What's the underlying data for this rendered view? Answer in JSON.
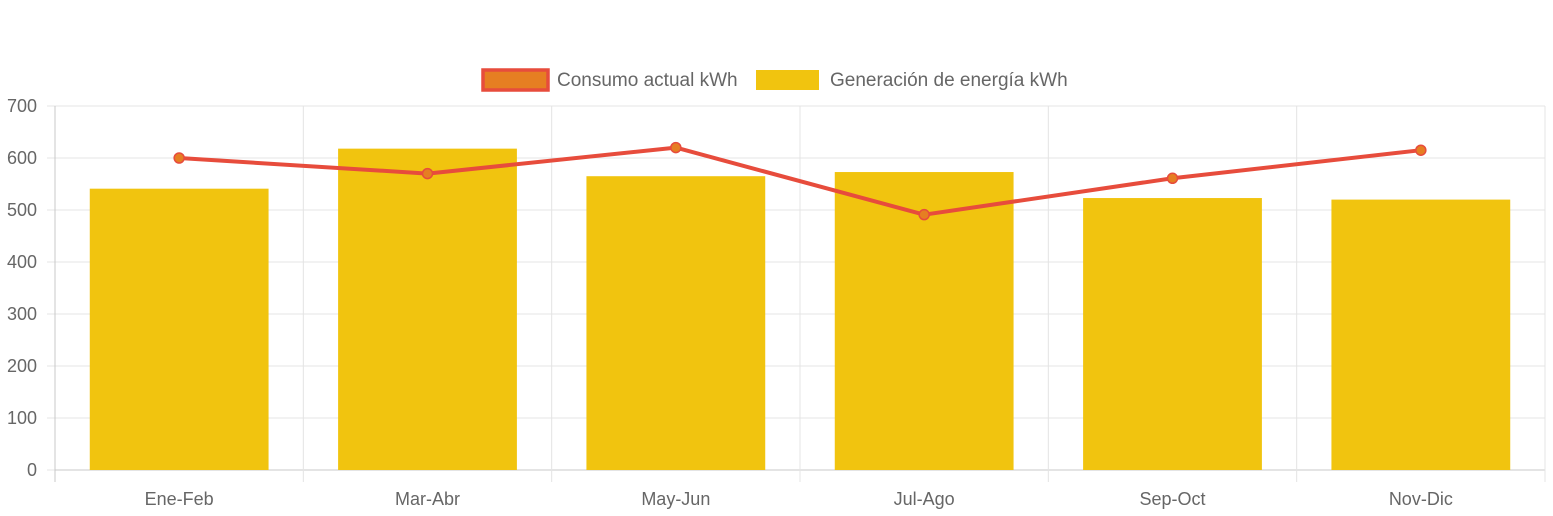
{
  "chart_data": {
    "type": "bar",
    "categories": [
      "Ene-Feb",
      "Mar-Abr",
      "May-Jun",
      "Jul-Ago",
      "Sep-Oct",
      "Nov-Dic"
    ],
    "series": [
      {
        "name": "Consumo actual kWh",
        "type": "line",
        "values": [
          600,
          570,
          620,
          491,
          561,
          615
        ],
        "color": "#e74c3c",
        "point_color": "#e67e22"
      },
      {
        "name": "Generación de energía kWh",
        "type": "bar",
        "values": [
          541,
          618,
          565,
          573,
          523,
          520
        ],
        "color": "#f1c40f"
      }
    ],
    "title": "",
    "xlabel": "",
    "ylabel": "",
    "ylim": [
      0,
      700
    ],
    "yticks": [
      "0",
      "100",
      "200",
      "300",
      "400",
      "500",
      "600",
      "700"
    ],
    "grid": true,
    "legend_position": "top-center"
  }
}
